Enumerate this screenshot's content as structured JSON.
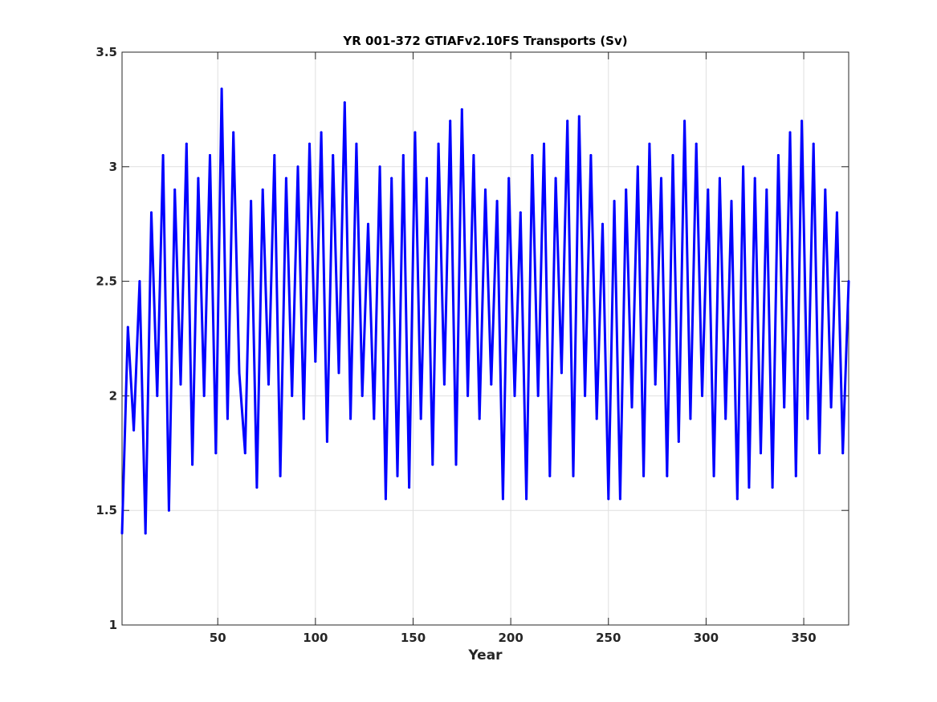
{
  "chart_data": {
    "type": "line",
    "title": "YR 001-372 GTIAFv2.10FS Transports (Sv)",
    "xlabel": "Year",
    "ylabel": "",
    "xlim": [
      1,
      373
    ],
    "ylim": [
      1,
      3.5
    ],
    "x_ticks": [
      50,
      100,
      150,
      200,
      250,
      300,
      350
    ],
    "x_tick_labels": [
      "50",
      "100",
      "150",
      "200",
      "250",
      "300",
      "350"
    ],
    "y_ticks": [
      1,
      1.5,
      2,
      2.5,
      3,
      3.5
    ],
    "y_tick_labels": [
      "1",
      "1.5",
      "2",
      "2.5",
      "3",
      "3.5"
    ],
    "grid": true,
    "line_color": "#0000ff",
    "series": [
      {
        "name": "",
        "x": [
          1,
          4,
          7,
          10,
          13,
          16,
          19,
          22,
          25,
          28,
          31,
          34,
          37,
          40,
          43,
          46,
          49,
          52,
          55,
          58,
          61,
          64,
          67,
          70,
          73,
          76,
          79,
          82,
          85,
          88,
          91,
          94,
          97,
          100,
          103,
          106,
          109,
          112,
          115,
          118,
          121,
          124,
          127,
          130,
          133,
          136,
          139,
          142,
          145,
          148,
          151,
          154,
          157,
          160,
          163,
          166,
          169,
          172,
          175,
          178,
          181,
          184,
          187,
          190,
          193,
          196,
          199,
          202,
          205,
          208,
          211,
          214,
          217,
          220,
          223,
          226,
          229,
          232,
          235,
          238,
          241,
          244,
          247,
          250,
          253,
          256,
          259,
          262,
          265,
          268,
          271,
          274,
          277,
          280,
          283,
          286,
          289,
          292,
          295,
          298,
          301,
          304,
          307,
          310,
          313,
          316,
          319,
          322,
          325,
          328,
          331,
          334,
          337,
          340,
          343,
          346,
          349,
          352,
          355,
          358,
          361,
          364,
          367,
          370,
          373
        ],
        "y": [
          1.4,
          2.3,
          1.85,
          2.5,
          1.4,
          2.8,
          2.0,
          3.05,
          1.5,
          2.9,
          2.05,
          3.1,
          1.7,
          2.95,
          2.0,
          3.05,
          1.75,
          3.34,
          1.9,
          3.15,
          2.1,
          1.75,
          2.85,
          1.6,
          2.9,
          2.05,
          3.05,
          1.65,
          2.95,
          2.0,
          3.0,
          1.9,
          3.1,
          2.15,
          3.15,
          1.8,
          3.05,
          2.1,
          3.28,
          1.9,
          3.1,
          2.0,
          2.75,
          1.9,
          3.0,
          1.55,
          2.95,
          1.65,
          3.05,
          1.6,
          3.15,
          1.9,
          2.95,
          1.7,
          3.1,
          2.05,
          3.2,
          1.7,
          3.25,
          2.0,
          3.05,
          1.9,
          2.9,
          2.05,
          2.85,
          1.55,
          2.95,
          2.0,
          2.8,
          1.55,
          3.05,
          2.0,
          3.1,
          1.65,
          2.95,
          2.1,
          3.2,
          1.65,
          3.22,
          2.0,
          3.05,
          1.9,
          2.75,
          1.55,
          2.85,
          1.55,
          2.9,
          1.95,
          3.0,
          1.65,
          3.1,
          2.05,
          2.95,
          1.65,
          3.05,
          1.8,
          3.2,
          1.9,
          3.1,
          2.0,
          2.9,
          1.65,
          2.95,
          1.9,
          2.85,
          1.55,
          3.0,
          1.6,
          2.95,
          1.75,
          2.9,
          1.6,
          3.05,
          1.95,
          3.15,
          1.65,
          3.2,
          1.9,
          3.1,
          1.75,
          2.9,
          1.95,
          2.8,
          1.75,
          2.5
        ]
      }
    ]
  }
}
